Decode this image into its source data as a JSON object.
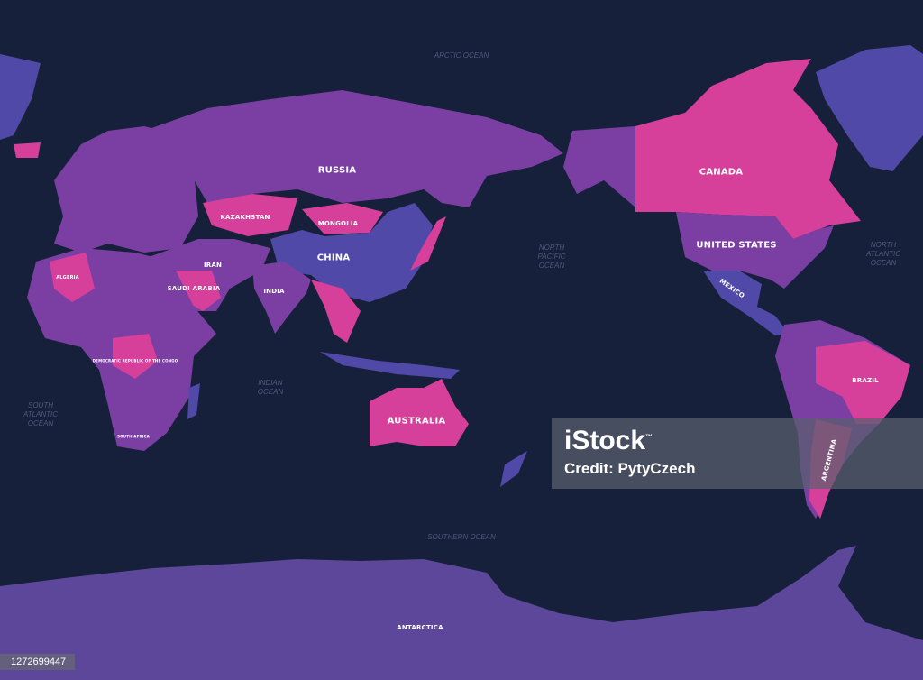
{
  "colors": {
    "ocean": "#17203a",
    "pink": "#d6409b",
    "purple": "#7b3fa3",
    "indigo": "#5049a8",
    "antarctica": "#5c479a"
  },
  "countries": {
    "russia": "RUSSIA",
    "canada": "CANADA",
    "usa": "UNITED STATES",
    "kazakhstan": "KAZAKHSTAN",
    "mongolia": "MONGOLIA",
    "china": "CHINA",
    "iran": "IRAN",
    "india": "INDIA",
    "saudi": "SAUDI ARABIA",
    "australia": "AUSTRALIA",
    "brazil": "BRAZIL",
    "argentina": "ARGENTINA",
    "mexico": "MEXICO",
    "antarctica": "ANTARCTICA",
    "algeria": "ALGERIA",
    "drc": "DEMOCRATIC REPUBLIC OF THE CONGO",
    "south_africa": "SOUTH AFRICA"
  },
  "oceans": {
    "arctic": "ARCTIC OCEAN",
    "north_pacific": "NORTH\nPACIFIC\nOCEAN",
    "north_atlantic": "NORTH\nATLANTIC\nOCEAN",
    "south_atlantic": "SOUTH\nATLANTIC\nOCEAN",
    "indian": "INDIAN\nOCEAN",
    "southern": "SOUTHERN OCEAN"
  },
  "watermark": {
    "logo": "iStock",
    "trademark": "™",
    "credit": "Credit: PytyCzech"
  },
  "image_id": "1272699447"
}
